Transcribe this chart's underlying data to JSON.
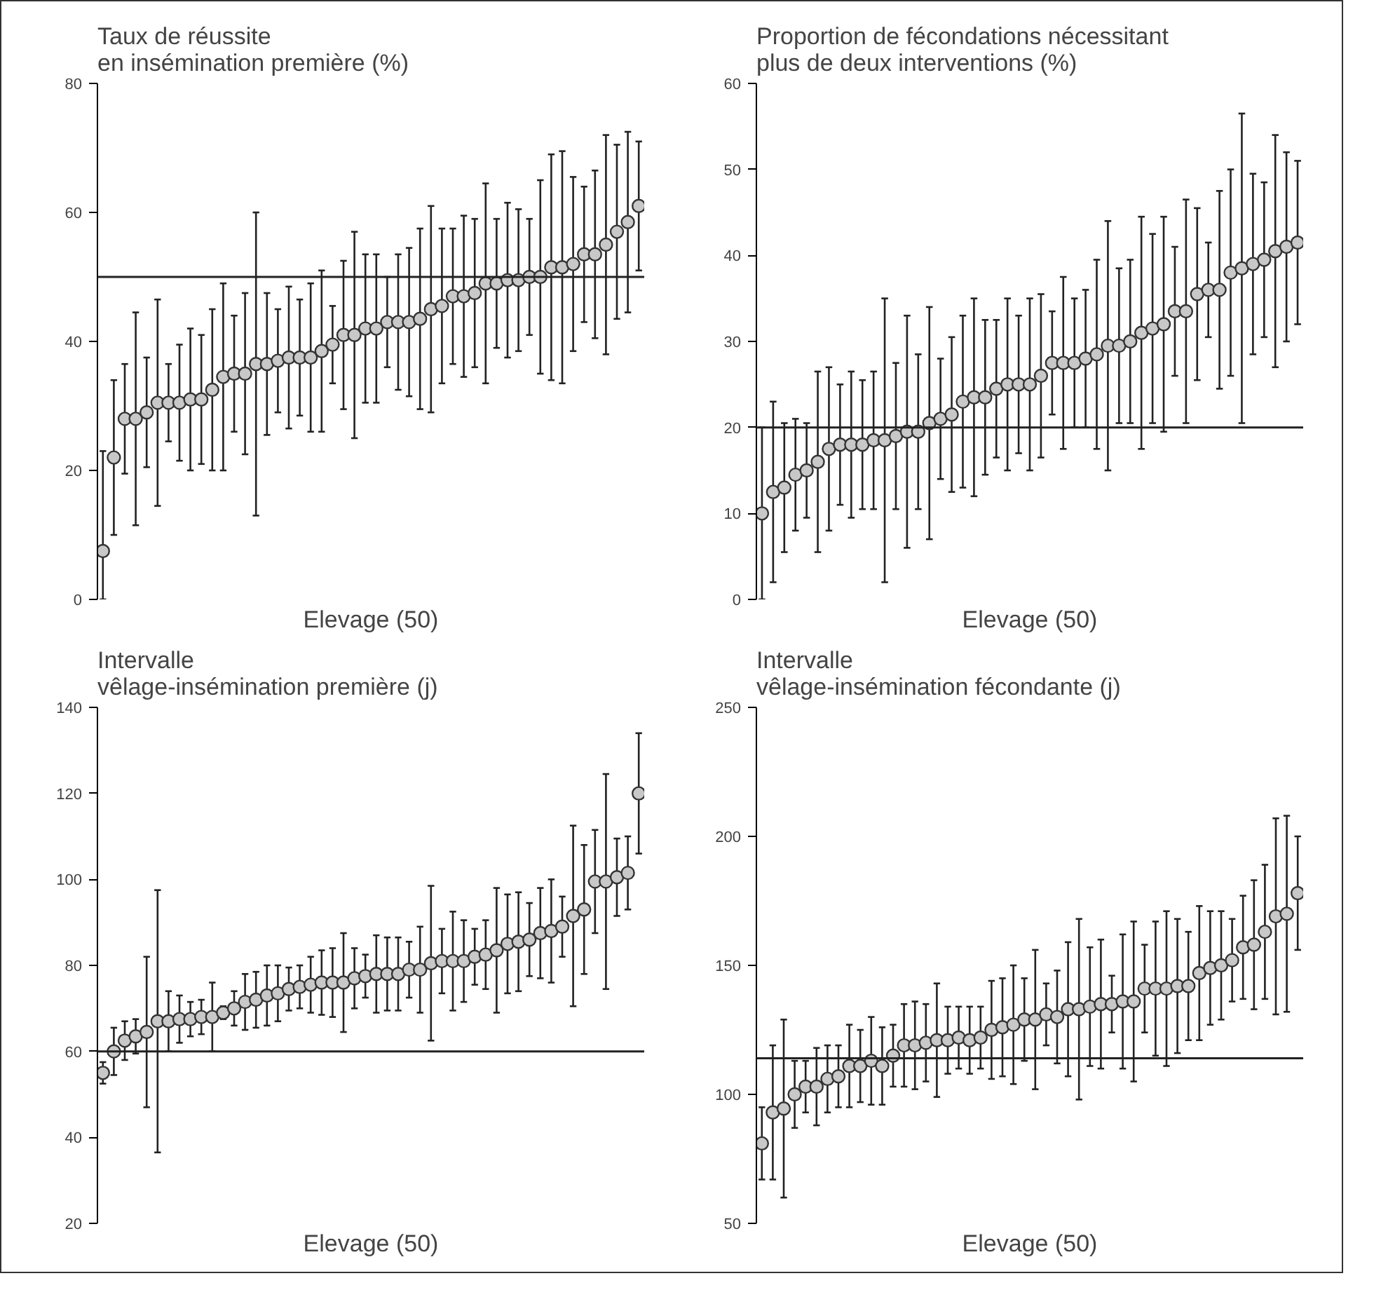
{
  "chart_data": [
    {
      "type": "scatter",
      "title": "Taux de réussite\nen insémination première (%)",
      "xlabel": "Elevage (50)",
      "categories": [
        null,
        null,
        null,
        null,
        null,
        null,
        null,
        null,
        null,
        null,
        null,
        null,
        null,
        null,
        null,
        null,
        null,
        null,
        null,
        null,
        null,
        null,
        null,
        null,
        null,
        null,
        null,
        null,
        null,
        null,
        null,
        null,
        null,
        null,
        null,
        null,
        null,
        null,
        null,
        null,
        null,
        null,
        null,
        null,
        null,
        null,
        null,
        null,
        null,
        null
      ],
      "values": [
        7.5,
        22,
        28,
        28,
        29,
        30.5,
        30.5,
        30.5,
        31,
        31,
        32.5,
        34.5,
        35,
        35,
        36.5,
        36.5,
        37,
        37.5,
        37.5,
        37.5,
        38.5,
        39.5,
        41,
        41,
        42,
        42,
        43,
        43,
        43,
        43.5,
        45,
        45.5,
        47,
        47,
        47.5,
        49,
        49,
        49.5,
        49.5,
        50,
        50,
        51.5,
        51.5,
        52,
        53.5,
        53.5,
        55,
        57,
        58.5,
        61
      ],
      "errors": [
        [
          0,
          23
        ],
        12,
        8.5,
        16.5,
        8.5,
        16,
        6,
        9,
        11,
        10,
        12.5,
        14.5,
        9,
        12.5,
        23.5,
        11,
        8,
        11,
        9,
        11.5,
        12.5,
        6,
        11.5,
        16,
        11.5,
        11.5,
        7,
        10.5,
        11.5,
        14,
        16,
        12,
        10.5,
        12.5,
        11.5,
        15.5,
        10,
        12,
        11,
        9,
        15,
        17.5,
        18,
        13.5,
        10.5,
        13,
        17,
        13.5,
        14,
        10
      ],
      "color": "#c8c8c8",
      "marker": "circle",
      "ylim": [
        0,
        80
      ],
      "yticks": [
        0,
        20,
        40,
        60,
        80
      ],
      "tick_labels": "y",
      "grid": false,
      "ref_lines": [
        {
          "axis": "y",
          "value": 50
        }
      ]
    },
    {
      "type": "scatter",
      "title": "Proportion de fécondations nécessitant\nplus de deux interventions (%)",
      "xlabel": "Elevage (50)",
      "categories": [
        null,
        null,
        null,
        null,
        null,
        null,
        null,
        null,
        null,
        null,
        null,
        null,
        null,
        null,
        null,
        null,
        null,
        null,
        null,
        null,
        null,
        null,
        null,
        null,
        null,
        null,
        null,
        null,
        null,
        null,
        null,
        null,
        null,
        null,
        null,
        null,
        null,
        null,
        null,
        null,
        null,
        null,
        null,
        null,
        null,
        null,
        null,
        null,
        null
      ],
      "values": [
        10,
        12.5,
        13,
        14.5,
        15,
        16,
        17.5,
        18,
        18,
        18,
        18.5,
        18.5,
        19,
        19.5,
        19.5,
        20.5,
        21,
        21.5,
        23,
        23.5,
        23.5,
        24.5,
        25,
        25,
        25,
        26,
        27.5,
        27.5,
        27.5,
        28,
        28.5,
        29.5,
        29.5,
        30,
        31,
        31.5,
        32,
        33.5,
        33.5,
        35.5,
        36,
        36,
        38,
        38.5,
        39,
        39.5,
        40.5,
        41,
        41.5
      ],
      "errors": [
        10,
        10.5,
        7.5,
        6.5,
        5.5,
        10.5,
        9.5,
        7,
        8.5,
        7.5,
        8,
        16.5,
        8.5,
        13.5,
        9,
        13.5,
        7,
        9,
        10,
        11.5,
        9,
        8,
        10,
        8,
        10,
        9.5,
        6,
        10,
        7.5,
        8,
        11,
        14.5,
        9,
        9.5,
        13.5,
        11,
        12.5,
        7.5,
        13,
        10,
        5.5,
        11.5,
        12,
        18,
        10.5,
        9,
        13.5,
        11,
        9.5
      ],
      "color": "#c8c8c8",
      "marker": "circle",
      "ylim": [
        0,
        60
      ],
      "yticks": [
        0,
        10,
        20,
        30,
        40,
        50,
        60
      ],
      "tick_labels": "y",
      "grid": false,
      "ref_lines": [
        {
          "axis": "y",
          "value": 20
        }
      ]
    },
    {
      "type": "scatter",
      "title": "Intervalle\nvêlage-insémination première (j)",
      "xlabel": "Elevage (50)",
      "categories": [
        null,
        null,
        null,
        null,
        null,
        null,
        null,
        null,
        null,
        null,
        null,
        null,
        null,
        null,
        null,
        null,
        null,
        null,
        null,
        null,
        null,
        null,
        null,
        null,
        null,
        null,
        null,
        null,
        null,
        null,
        null,
        null,
        null,
        null,
        null,
        null,
        null,
        null,
        null,
        null,
        null,
        null,
        null,
        null,
        null,
        null,
        null,
        null,
        null,
        null
      ],
      "values": [
        55,
        60,
        62.5,
        63.5,
        64.5,
        67,
        67,
        67.5,
        67.5,
        68,
        68,
        69,
        70,
        71.5,
        72,
        73,
        73.5,
        74.5,
        75,
        75.5,
        76,
        76,
        76,
        77,
        77.5,
        78,
        78,
        78,
        79,
        79,
        80.5,
        81,
        81,
        81,
        82,
        82.5,
        83.5,
        85,
        85.5,
        86,
        87.5,
        88,
        89,
        91.5,
        93,
        99.5,
        99.5,
        100.5,
        101.5,
        120
      ],
      "errors": [
        2.5,
        5.5,
        4.5,
        4,
        17.5,
        30.5,
        7,
        5.5,
        4,
        4,
        8,
        1.5,
        4,
        6.5,
        6.5,
        7,
        6.5,
        5,
        5,
        6.5,
        7.5,
        8,
        11.5,
        7,
        5,
        9,
        8.5,
        8.5,
        6.5,
        10,
        18,
        7.5,
        11.5,
        9.5,
        6.5,
        8,
        14.5,
        11.5,
        11.5,
        8.5,
        10.5,
        12,
        7,
        21,
        15,
        12,
        25,
        9,
        8.5,
        14
      ],
      "color": "#c8c8c8",
      "marker": "circle",
      "ylim": [
        20,
        140
      ],
      "yticks": [
        20,
        40,
        60,
        80,
        100,
        120,
        140
      ],
      "tick_labels": "y",
      "grid": false,
      "ref_lines": [
        {
          "axis": "y",
          "value": 60
        }
      ]
    },
    {
      "type": "scatter",
      "title": "Intervalle\nvêlage-insémination fécondante (j)",
      "xlabel": "Elevage (50)",
      "categories": [
        null,
        null,
        null,
        null,
        null,
        null,
        null,
        null,
        null,
        null,
        null,
        null,
        null,
        null,
        null,
        null,
        null,
        null,
        null,
        null,
        null,
        null,
        null,
        null,
        null,
        null,
        null,
        null,
        null,
        null,
        null,
        null,
        null,
        null,
        null,
        null,
        null,
        null,
        null,
        null,
        null,
        null,
        null,
        null,
        null,
        null,
        null,
        null,
        null,
        null
      ],
      "values": [
        81,
        93,
        94.5,
        100,
        103,
        103,
        106,
        107,
        111,
        111,
        113,
        111,
        115,
        119,
        119,
        120,
        121,
        121,
        122,
        121,
        122,
        125,
        126,
        127,
        129,
        129,
        131,
        130,
        133,
        133,
        134,
        135,
        135,
        136,
        136,
        141,
        141,
        141,
        142,
        142,
        147,
        149,
        150,
        152,
        157,
        158,
        163,
        169,
        170,
        178
      ],
      "errors": [
        14,
        26,
        34.5,
        13,
        10,
        15,
        13,
        12,
        16,
        14,
        17,
        15,
        12,
        16,
        17,
        15,
        22,
        13,
        12,
        13,
        12,
        19,
        19,
        23,
        16,
        27,
        12,
        18,
        26,
        35,
        23,
        25,
        11,
        26,
        31,
        17,
        26,
        30,
        26,
        21,
        26,
        22,
        21,
        16,
        20,
        25,
        26,
        38,
        38,
        22
      ],
      "color": "#c8c8c8",
      "marker": "circle",
      "ylim": [
        50,
        250
      ],
      "yticks": [
        50,
        100,
        150,
        200,
        250
      ],
      "tick_labels": "y",
      "grid": false,
      "ref_lines": [
        {
          "axis": "y",
          "value": 114
        }
      ]
    }
  ]
}
